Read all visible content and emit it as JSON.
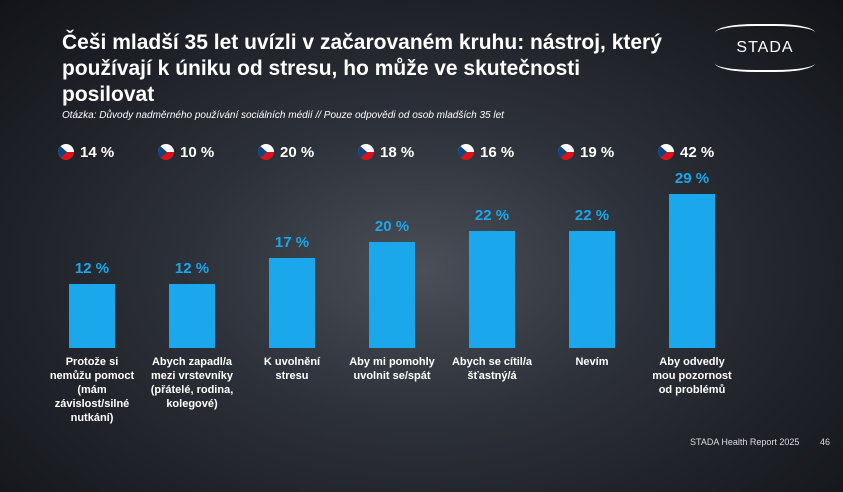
{
  "chart_data": {
    "type": "bar",
    "title": "Češi mladší 35 let uvízli v začarovaném kruhu: nástroj, který používají k úniku od stresu, ho může ve skutečnosti posilovat",
    "subtitle": "Otázka: Důvody nadměrného používání sociálních médií // Pouze odpovědi od osob mladších 35 let",
    "logo": "STADA",
    "footer": "STADA Health Report 2025",
    "page": "46",
    "categories": [
      "Protože si nemůžu pomoct (mám závislost/silné nutkání)",
      "Abych zapadl/a mezi vrstevníky (přátelé, rodina, kolegové)",
      "K uvolnění stresu",
      "Aby mi pomohly uvolnit se/spát",
      "Abych se cítil/a šťastný/á",
      "Nevím",
      "Aby odvedly mou pozornost od problémů"
    ],
    "values": [
      12,
      12,
      17,
      20,
      22,
      22,
      29
    ],
    "value_labels": [
      "12 %",
      "12 %",
      "17 %",
      "20 %",
      "22 %",
      "22 %",
      "29 %"
    ],
    "color": "#1aa7ec",
    "comparison": {
      "values": [
        14,
        10,
        20,
        18,
        16,
        19,
        42
      ],
      "value_labels": [
        "14 %",
        "10 %",
        "20 %",
        "18 %",
        "16 %",
        "19 %",
        "42 %"
      ]
    }
  }
}
